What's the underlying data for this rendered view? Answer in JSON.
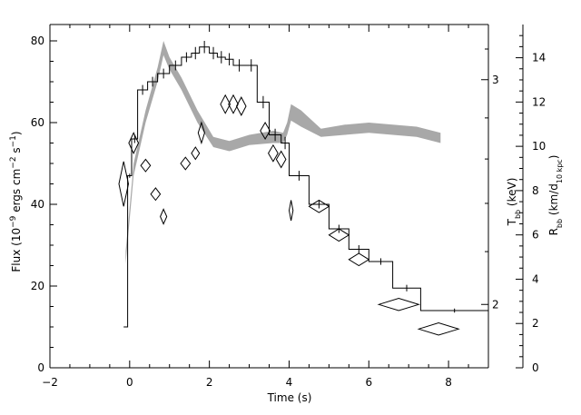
{
  "chart_data": {
    "type": "line",
    "x_axis": {
      "label": "Time (s)",
      "range": [
        -2,
        9
      ],
      "ticks": [
        -2,
        0,
        2,
        4,
        6,
        8
      ],
      "tick_labels": [
        "−2",
        "0",
        "2",
        "4",
        "6",
        "8"
      ]
    },
    "y_axis_left": {
      "label_main": "Flux (10",
      "label_sup1": "−9",
      "label_mid": " ergs cm",
      "label_sup2": "−2",
      "label_mid2": " s",
      "label_sup3": "−1",
      "label_end": ")",
      "range": [
        0,
        84
      ],
      "ticks": [
        0,
        20,
        40,
        60,
        80
      ],
      "tick_labels": [
        "0",
        "20",
        "40",
        "60",
        "80"
      ]
    },
    "y_axis_kt": {
      "label_main": "T",
      "label_sub": "bb",
      "label_end": " (keV)",
      "ticks": [
        2,
        3
      ],
      "tick_labels": [
        "2",
        "3"
      ],
      "tick_heights_flux": [
        15.5,
        70.5
      ]
    },
    "y_axis_radius": {
      "label_main": "R",
      "label_sub": "bb",
      "label_mid": " (km/d",
      "label_sub2": "10 kpc",
      "label_end": ")",
      "range": [
        0,
        15.5
      ],
      "ticks": [
        0,
        2,
        4,
        6,
        8,
        10,
        12,
        14
      ],
      "tick_labels": [
        "0",
        "2",
        "4",
        "6",
        "8",
        "10",
        "12",
        "14"
      ]
    },
    "series": [
      {
        "role": "flux_histogram",
        "points": [
          {
            "x0": -0.15,
            "x1": -0.05,
            "y": 10.0,
            "yerr": 0.0
          },
          {
            "x0": -0.05,
            "x1": 0.05,
            "y": 47.0,
            "yerr": 0.5
          },
          {
            "x0": 0.05,
            "x1": 0.2,
            "y": 56.0,
            "yerr": 1.0
          },
          {
            "x0": 0.2,
            "x1": 0.45,
            "y": 68.0,
            "yerr": 1.2
          },
          {
            "x0": 0.45,
            "x1": 0.7,
            "y": 70.0,
            "yerr": 1.2
          },
          {
            "x0": 0.7,
            "x1": 1.0,
            "y": 72.0,
            "yerr": 1.2
          },
          {
            "x0": 1.0,
            "x1": 1.3,
            "y": 74.0,
            "yerr": 1.2
          },
          {
            "x0": 1.3,
            "x1": 1.55,
            "y": 76.0,
            "yerr": 1.2
          },
          {
            "x0": 1.55,
            "x1": 1.75,
            "y": 77.0,
            "yerr": 1.5
          },
          {
            "x0": 1.75,
            "x1": 2.0,
            "y": 78.5,
            "yerr": 1.5
          },
          {
            "x0": 2.0,
            "x1": 2.2,
            "y": 77.0,
            "yerr": 1.5
          },
          {
            "x0": 2.2,
            "x1": 2.4,
            "y": 76.0,
            "yerr": 1.5
          },
          {
            "x0": 2.4,
            "x1": 2.6,
            "y": 75.5,
            "yerr": 1.5
          },
          {
            "x0": 2.6,
            "x1": 2.9,
            "y": 74.0,
            "yerr": 1.5
          },
          {
            "x0": 2.9,
            "x1": 3.2,
            "y": 74.0,
            "yerr": 1.5
          },
          {
            "x0": 3.2,
            "x1": 3.5,
            "y": 65.0,
            "yerr": 1.5
          },
          {
            "x0": 3.5,
            "x1": 3.8,
            "y": 57.0,
            "yerr": 1.5
          },
          {
            "x0": 3.8,
            "x1": 4.0,
            "y": 55.0,
            "yerr": 1.5
          },
          {
            "x0": 4.0,
            "x1": 4.5,
            "y": 47.0,
            "yerr": 1.2
          },
          {
            "x0": 4.5,
            "x1": 5.0,
            "y": 40.0,
            "yerr": 1.0
          },
          {
            "x0": 5.0,
            "x1": 5.5,
            "y": 34.0,
            "yerr": 1.0
          },
          {
            "x0": 5.5,
            "x1": 6.0,
            "y": 29.0,
            "yerr": 1.0
          },
          {
            "x0": 6.0,
            "x1": 6.6,
            "y": 26.0,
            "yerr": 0.8
          },
          {
            "x0": 6.6,
            "x1": 7.3,
            "y": 19.5,
            "yerr": 0.8
          },
          {
            "x0": 7.3,
            "x1": 9.0,
            "y": 14.0,
            "yerr": 0.5
          }
        ]
      },
      {
        "role": "radius_diamonds",
        "points": [
          {
            "x": -0.15,
            "y": 45.0,
            "dx": 0.12,
            "dy": 5.5
          },
          {
            "x": 0.1,
            "y": 55.0,
            "dx": 0.12,
            "dy": 2.5
          },
          {
            "x": 0.4,
            "y": 49.5,
            "dx": 0.12,
            "dy": 1.5
          },
          {
            "x": 0.65,
            "y": 42.5,
            "dx": 0.12,
            "dy": 1.5
          },
          {
            "x": 0.85,
            "y": 37.0,
            "dx": 0.08,
            "dy": 1.8
          },
          {
            "x": 1.4,
            "y": 50.0,
            "dx": 0.12,
            "dy": 1.5
          },
          {
            "x": 1.65,
            "y": 52.5,
            "dx": 0.1,
            "dy": 1.5
          },
          {
            "x": 1.8,
            "y": 57.5,
            "dx": 0.08,
            "dy": 2.5
          },
          {
            "x": 2.4,
            "y": 64.5,
            "dx": 0.12,
            "dy": 2.2
          },
          {
            "x": 2.6,
            "y": 64.5,
            "dx": 0.12,
            "dy": 2.2
          },
          {
            "x": 2.8,
            "y": 64.0,
            "dx": 0.12,
            "dy": 2.2
          },
          {
            "x": 3.4,
            "y": 58.0,
            "dx": 0.12,
            "dy": 2.0
          },
          {
            "x": 3.6,
            "y": 52.5,
            "dx": 0.12,
            "dy": 2.0
          },
          {
            "x": 3.8,
            "y": 51.0,
            "dx": 0.12,
            "dy": 2.0
          },
          {
            "x": 4.05,
            "y": 38.5,
            "dx": 0.05,
            "dy": 2.5
          },
          {
            "x": 4.75,
            "y": 39.5,
            "dx": 0.25,
            "dy": 1.5
          },
          {
            "x": 5.25,
            "y": 32.5,
            "dx": 0.25,
            "dy": 1.5
          },
          {
            "x": 5.75,
            "y": 26.5,
            "dx": 0.25,
            "dy": 1.5
          },
          {
            "x": 6.75,
            "y": 15.5,
            "dx": 0.5,
            "dy": 1.5
          },
          {
            "x": 7.75,
            "y": 9.5,
            "dx": 0.5,
            "dy": 1.5
          }
        ]
      },
      {
        "role": "model_band",
        "x": [
          -0.1,
          0.1,
          0.4,
          0.7,
          0.85,
          1.0,
          1.3,
          1.7,
          2.1,
          2.5,
          3.0,
          3.6,
          3.85,
          3.95,
          4.05,
          4.3,
          4.8,
          5.4,
          6.0,
          6.6,
          7.2,
          7.8
        ],
        "lower": [
          25.5,
          47.0,
          60.0,
          70.0,
          76.5,
          73.0,
          68.0,
          60.0,
          54.0,
          53.0,
          54.5,
          55.0,
          55.0,
          57.0,
          60.5,
          59.0,
          56.5,
          57.0,
          57.5,
          57.0,
          56.5,
          55.0
        ],
        "upper": [
          28.5,
          50.0,
          63.0,
          73.5,
          80.0,
          76.0,
          71.0,
          63.0,
          56.5,
          55.5,
          57.0,
          58.0,
          57.5,
          60.0,
          64.5,
          63.0,
          58.5,
          59.5,
          60.0,
          59.5,
          59.0,
          57.5
        ]
      }
    ],
    "colors": {
      "line": "#000000",
      "band": "#a8a8a8",
      "background": "#ffffff"
    }
  }
}
